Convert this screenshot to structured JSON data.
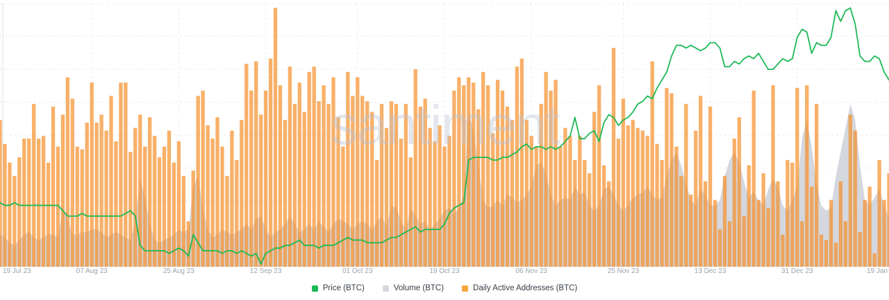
{
  "watermark": "santiment",
  "legend": [
    {
      "label": "Price (BTC)",
      "color": "#1cb955"
    },
    {
      "label": "Volume (BTC)",
      "color": "#d4d7de"
    },
    {
      "label": "Daily Active Addresses (BTC)",
      "color": "#f6a63e"
    }
  ],
  "colors": {
    "background": "#ffffff",
    "grid": "#e8eaee",
    "axis_line": "#d9dce1",
    "price_line": "#1cb955",
    "volume_fill": "#d4d7de",
    "daa_fill": "#f78e2a",
    "daa_edge": "#f09a3c",
    "tick_label": "#9aa1ab",
    "legend_text": "#333d47",
    "watermark": "rgba(186,194,210,0.4)"
  },
  "chart_data": {
    "type": "mixed",
    "title": "",
    "x_axis": {
      "tick_labels": [
        "19 Jul 23",
        "07 Aug 23",
        "25 Aug 23",
        "12 Sep 23",
        "01 Oct 23",
        "19 Oct 23",
        "06 Nov 23",
        "25 Nov 23",
        "13 Dec 23",
        "31 Dec 23",
        "19 Jan"
      ],
      "tick_day_index": [
        0,
        19,
        37,
        55,
        74,
        92,
        110,
        129,
        147,
        165,
        184
      ],
      "days_total": 185
    },
    "y_axis": {
      "labels_visible": false,
      "scale": "normalized 0-100 = percent of plot height",
      "range": [
        0,
        100
      ]
    },
    "grid": {
      "horizontal_lines": 8,
      "style": "dashed",
      "vertical_at_ticks": true
    },
    "legend_position": "bottom-center",
    "series": [
      {
        "name": "Price (BTC)",
        "type": "line",
        "color": "#1cb955",
        "values": [
          24,
          23,
          23,
          24,
          23,
          23,
          23,
          23,
          23,
          23,
          23,
          23,
          23,
          21,
          19,
          19,
          19,
          20,
          19,
          19,
          19,
          19,
          19,
          19,
          19,
          19,
          20,
          21,
          19,
          8,
          6,
          6,
          6,
          6,
          6,
          5,
          6,
          7,
          6,
          4,
          12,
          9,
          6,
          6,
          6,
          6,
          5,
          6,
          6,
          5,
          6,
          5,
          4,
          5,
          1,
          5,
          6,
          7,
          7,
          8,
          8,
          9,
          10,
          8,
          8,
          8,
          7,
          8,
          8,
          8,
          9,
          10,
          11,
          10,
          10,
          10,
          9,
          9,
          9,
          9,
          10,
          11,
          11,
          12,
          13,
          14,
          15,
          13,
          14,
          14,
          14,
          14,
          16,
          20,
          22,
          23,
          24,
          40,
          41,
          41,
          41,
          41,
          40,
          40,
          41,
          41,
          42,
          43,
          45,
          46,
          44,
          45,
          45,
          44,
          45,
          44,
          45,
          47,
          49,
          56,
          48,
          48,
          50,
          51,
          47,
          54,
          57,
          56,
          53,
          55,
          56,
          58,
          61,
          62,
          64,
          63,
          67,
          70,
          73,
          79,
          83,
          83,
          82,
          83,
          82,
          81,
          82,
          84,
          84,
          82,
          75,
          75,
          77,
          76,
          78,
          79,
          78,
          80,
          77,
          74,
          74,
          76,
          78,
          77,
          78,
          86,
          89,
          88,
          80,
          84,
          83,
          83,
          86,
          96,
          92,
          96,
          97,
          91,
          79,
          77,
          77,
          79,
          78,
          73,
          70
        ]
      },
      {
        "name": "Volume (BTC)",
        "type": "area",
        "color": "#d4d7de",
        "values": [
          12,
          11,
          9,
          8,
          10,
          12,
          13,
          11,
          10,
          11,
          12,
          12,
          11,
          22,
          18,
          12,
          12,
          13,
          13,
          14,
          14,
          13,
          11,
          12,
          13,
          12,
          11,
          10,
          17,
          33,
          26,
          16,
          10,
          9,
          10,
          11,
          12,
          14,
          13,
          14,
          30,
          34,
          22,
          14,
          11,
          12,
          14,
          13,
          12,
          13,
          14,
          16,
          14,
          18,
          19,
          14,
          11,
          13,
          14,
          16,
          19,
          16,
          13,
          14,
          16,
          14,
          17,
          15,
          13,
          16,
          18,
          17,
          16,
          14,
          16,
          17,
          16,
          14,
          17,
          19,
          15,
          23,
          22,
          17,
          14,
          22,
          19,
          16,
          17,
          14,
          16,
          18,
          21,
          22,
          20,
          22,
          27,
          58,
          51,
          38,
          25,
          22,
          23,
          25,
          23,
          27,
          26,
          24,
          25,
          27,
          30,
          38,
          39,
          35,
          27,
          23,
          25,
          26,
          25,
          30,
          27,
          28,
          23,
          21,
          23,
          29,
          30,
          27,
          23,
          21,
          23,
          26,
          27,
          28,
          30,
          27,
          25,
          26,
          34,
          40,
          43,
          38,
          31,
          25,
          23,
          29,
          27,
          23,
          23,
          25,
          34,
          40,
          43,
          39,
          32,
          26,
          28,
          25,
          23,
          29,
          33,
          30,
          23,
          21,
          25,
          30,
          48,
          55,
          45,
          31,
          23,
          21,
          22,
          34,
          43,
          52,
          61,
          55,
          38,
          25,
          23,
          26,
          29,
          23,
          18
        ]
      },
      {
        "name": "Daily Active Addresses (BTC)",
        "type": "bar",
        "color": "#f78e2a",
        "values": [
          55,
          46,
          39,
          34,
          41,
          48,
          48,
          61,
          48,
          49,
          39,
          60,
          45,
          57,
          71,
          63,
          45,
          44,
          54,
          69,
          54,
          57,
          51,
          64,
          47,
          69,
          69,
          43,
          52,
          57,
          45,
          56,
          49,
          41,
          45,
          51,
          39,
          47,
          34,
          17,
          36,
          64,
          66,
          53,
          48,
          56,
          45,
          34,
          51,
          40,
          55,
          76,
          66,
          77,
          57,
          66,
          78,
          97,
          68,
          55,
          75,
          61,
          69,
          58,
          73,
          75,
          62,
          68,
          61,
          71,
          56,
          45,
          73,
          64,
          71,
          64,
          62,
          58,
          40,
          61,
          52,
          62,
          61,
          48,
          61,
          41,
          74,
          60,
          63,
          52,
          47,
          53,
          45,
          49,
          66,
          71,
          68,
          71,
          69,
          59,
          73,
          68,
          50,
          70,
          66,
          60,
          55,
          75,
          78,
          55,
          49,
          45,
          61,
          73,
          66,
          70,
          45,
          52,
          49,
          40,
          49,
          40,
          35,
          58,
          68,
          38,
          32,
          82,
          48,
          63,
          53,
          55,
          52,
          51,
          49,
          77,
          46,
          40,
          67,
          65,
          45,
          34,
          61,
          27,
          51,
          64,
          32,
          60,
          25,
          14,
          34,
          17,
          48,
          56,
          19,
          38,
          66,
          25,
          35,
          22,
          68,
          32,
          12,
          40,
          39,
          67,
          17,
          68,
          30,
          61,
          12,
          10,
          25,
          9,
          32,
          17,
          57,
          51,
          13,
          25,
          30,
          5,
          40,
          25,
          35
        ]
      }
    ],
    "watermark_text": "santiment"
  }
}
